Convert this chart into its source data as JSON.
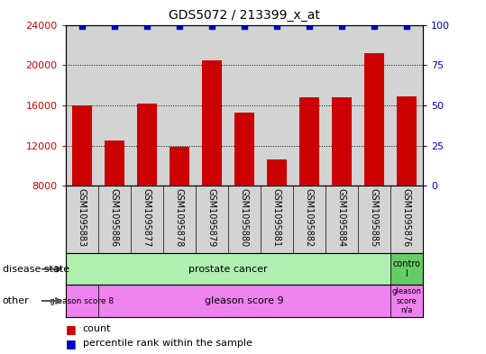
{
  "title": "GDS5072 / 213399_x_at",
  "samples": [
    "GSM1095883",
    "GSM1095886",
    "GSM1095877",
    "GSM1095878",
    "GSM1095879",
    "GSM1095880",
    "GSM1095881",
    "GSM1095882",
    "GSM1095884",
    "GSM1095885",
    "GSM1095876"
  ],
  "counts": [
    16000,
    12500,
    16200,
    11900,
    20500,
    15300,
    10600,
    16800,
    16800,
    21200,
    16900
  ],
  "percentile_ranks": [
    99,
    99,
    99,
    99,
    99,
    99,
    99,
    99,
    99,
    99,
    99
  ],
  "ylim_left": [
    8000,
    24000
  ],
  "ylim_right": [
    0,
    100
  ],
  "yticks_left": [
    8000,
    12000,
    16000,
    20000,
    24000
  ],
  "yticks_right": [
    0,
    25,
    50,
    75,
    100
  ],
  "bar_color": "#cc0000",
  "dot_color": "#0000cc",
  "bar_width": 0.6,
  "axis_bg": "#d3d3d3",
  "left_label_color": "#cc0000",
  "right_label_color": "#0000cc",
  "legend_items": [
    "count",
    "percentile rank within the sample"
  ],
  "legend_colors": [
    "#cc0000",
    "#0000cc"
  ],
  "prostate_color": "#b0f0b0",
  "control_color": "#66cc66",
  "gleason_color": "#ee82ee"
}
